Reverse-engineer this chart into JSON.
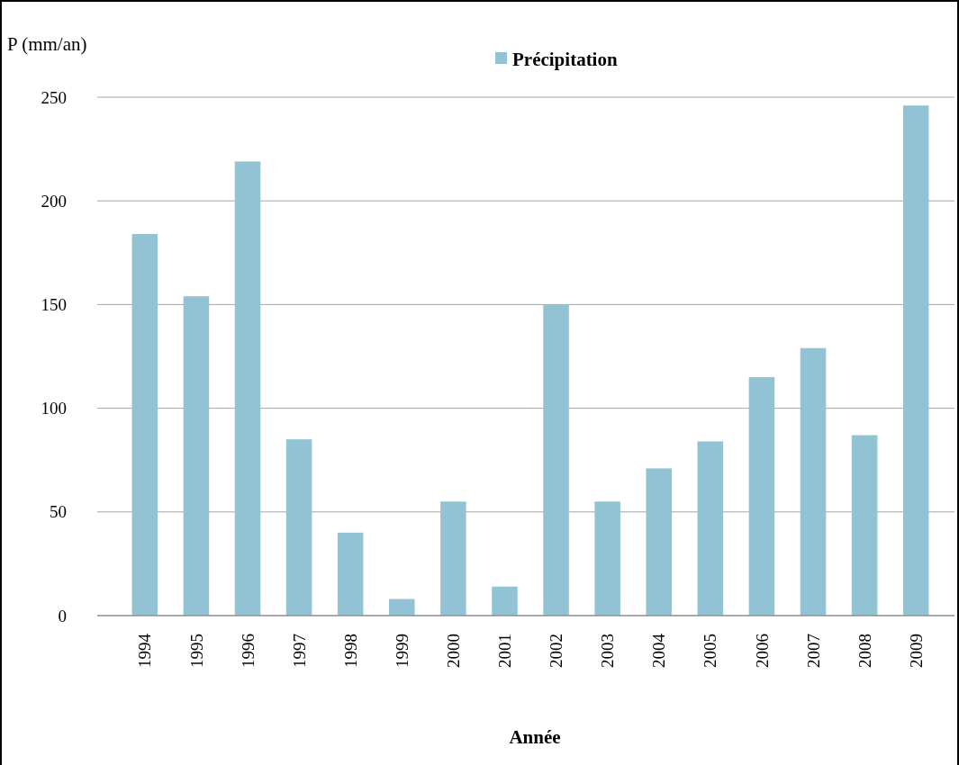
{
  "chart_data": {
    "type": "bar",
    "ylabel": "P  (mm/an)",
    "xlabel": "Année",
    "categories": [
      "1994",
      "1995",
      "1996",
      "1997",
      "1998",
      "1999",
      "2000",
      "2001",
      "2002",
      "2003",
      "2004",
      "2005",
      "2006",
      "2007",
      "2008",
      "2009"
    ],
    "series": [
      {
        "name": "Précipitation",
        "color": "#92c3d4",
        "values": [
          184,
          154,
          219,
          85,
          40,
          8,
          55,
          14,
          150,
          55,
          71,
          84,
          115,
          129,
          87,
          246
        ]
      }
    ],
    "ylim": [
      0,
      250
    ],
    "yticks": [
      0,
      50,
      100,
      150,
      200,
      250
    ],
    "grid": "y",
    "legend": "top"
  }
}
